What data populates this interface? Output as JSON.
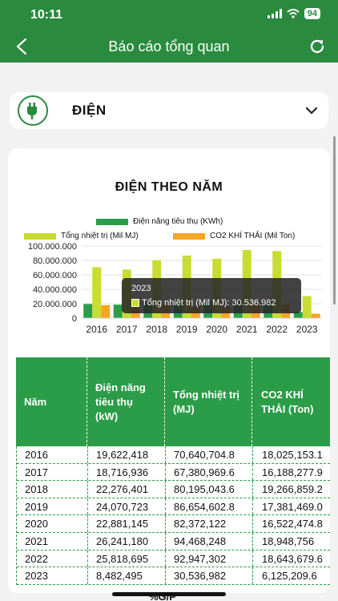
{
  "status_bar": {
    "time": "10:11",
    "battery": "94"
  },
  "nav": {
    "title": "Báo cáo tổng quan"
  },
  "category": {
    "label": "ĐIỆN"
  },
  "chart_section": {
    "title": "ĐIỆN THEO NĂM"
  },
  "colors": {
    "primary": "#2a8a3e",
    "electricity": "#2b9c48",
    "heat": "#c8dc32",
    "co2": "#f5a623"
  },
  "tooltip": {
    "year": "2023",
    "text": "Tổng nhiệt trị (Mil MJ): 30.536.982"
  },
  "chart_data": {
    "type": "bar",
    "categories": [
      "2016",
      "2017",
      "2018",
      "2019",
      "2020",
      "2021",
      "2022",
      "2023"
    ],
    "series": [
      {
        "name": "Điện năng tiêu thụ (KWh)",
        "values": [
          19622418,
          18716936,
          22276401,
          24070723,
          22881145,
          26241180,
          25818695,
          8482495
        ]
      },
      {
        "name": "Tổng nhiệt trị (Mil MJ)",
        "values": [
          70640704.8,
          67380969.6,
          80195043.6,
          86654602.8,
          82372122,
          94468248,
          92947302,
          30536982
        ]
      },
      {
        "name": "CO2 KHÍ THẢI (Mil Ton)",
        "values": [
          18025153.1,
          16188277.9,
          19266859.2,
          17381469.0,
          16522474.8,
          18948756,
          18643679.6,
          6125209.6
        ]
      }
    ],
    "y_ticks": [
      "0",
      "20.000.000",
      "40.000.000",
      "60.000.000",
      "80.000.000",
      "100.000.000"
    ],
    "ylim": [
      0,
      100000000
    ],
    "grid": true,
    "legend_placement": "top"
  },
  "table": {
    "headers": [
      "Năm",
      "Điện năng tiêu thụ (kW)",
      "Tổng nhiệt trị (MJ)",
      "CO2 KHÍ THẢI (Ton)"
    ],
    "rows": [
      [
        "2016",
        "19,622,418",
        "70,640,704.8",
        "18,025,153.1"
      ],
      [
        "2017",
        "18,716,936",
        "67,380,969.6",
        "16,188,277.9"
      ],
      [
        "2018",
        "22,276,401",
        "80,195,043.6",
        "19,266,859.2"
      ],
      [
        "2019",
        "24,070,723",
        "86,654,602.8",
        "17,381,469.0"
      ],
      [
        "2020",
        "22,881,145",
        "82,372,122",
        "16,522,474.8"
      ],
      [
        "2021",
        "26,241,180",
        "94,468,248",
        "18,948,756"
      ],
      [
        "2022",
        "25,818,695",
        "92,947,302",
        "18,643,679.6"
      ],
      [
        "2023",
        "8,482,495",
        "30,536,982",
        "6,125,209.6"
      ]
    ]
  },
  "footer": {
    "next_section": "%G/P"
  }
}
